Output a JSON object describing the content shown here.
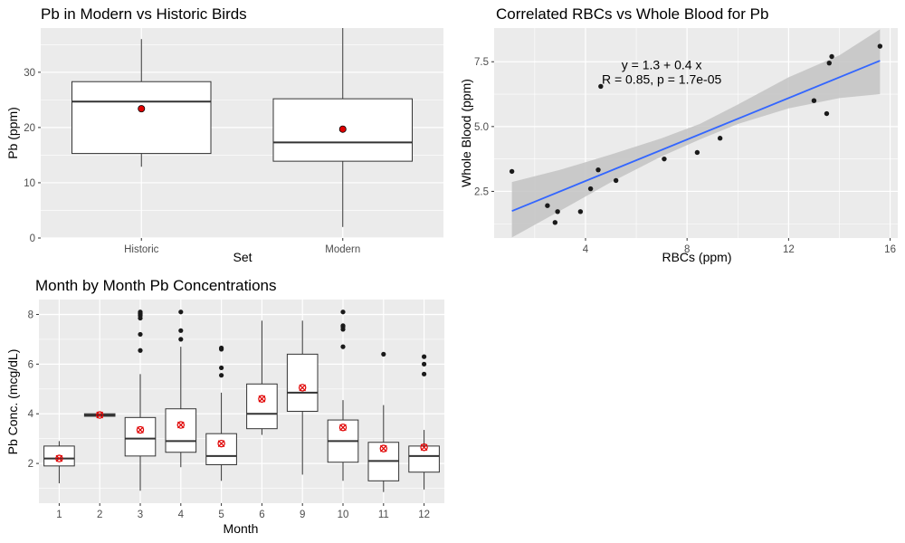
{
  "colors": {
    "panel_bg": "#ebebeb",
    "grid": "#ffffff",
    "box_fill": "#ffffff",
    "box_line": "#333333",
    "mean_point": "#e00000",
    "scatter_point": "#1a1a1a",
    "fit_line": "#3366ff",
    "ci_band": "#c3c3c3",
    "tick_text": "#4d4d4d"
  },
  "chart_data": [
    {
      "id": "historic-modern",
      "type": "box",
      "title": "Pb in Modern vs Historic Birds",
      "xlabel": "Set",
      "ylabel": "Pb (ppm)",
      "categories": [
        "Historic",
        "Modern"
      ],
      "ylim": [
        0,
        38
      ],
      "yticks": [
        0,
        10,
        20,
        30
      ],
      "grid": true,
      "boxes": [
        {
          "category": "Historic",
          "low": 12.9,
          "q1": 15.3,
          "median": 24.7,
          "q3": 28.3,
          "high": 36.0,
          "mean": 23.4,
          "outliers": []
        },
        {
          "category": "Modern",
          "low": 2.0,
          "q1": 13.9,
          "median": 17.3,
          "q3": 25.2,
          "high": 38.0,
          "mean": 19.7,
          "outliers": []
        }
      ]
    },
    {
      "id": "rbc-wholeblood",
      "type": "scatter",
      "title": "Correlated RBCs vs Whole Blood for Pb",
      "xlabel": "RBCs (ppm)",
      "ylabel": "Whole Blood (ppm)",
      "xlim": [
        0.4,
        16.3
      ],
      "ylim": [
        0.7,
        8.8
      ],
      "xticks": [
        4,
        8,
        12,
        16
      ],
      "yticks": [
        2.5,
        5.0,
        7.5
      ],
      "ytick_labels": [
        "2.5",
        "5.0",
        "7.5"
      ],
      "grid": true,
      "points": [
        [
          1.1,
          3.27
        ],
        [
          2.5,
          1.95
        ],
        [
          2.8,
          1.3
        ],
        [
          2.9,
          1.72
        ],
        [
          3.8,
          1.72
        ],
        [
          4.2,
          2.6
        ],
        [
          4.5,
          3.33
        ],
        [
          4.6,
          6.55
        ],
        [
          5.2,
          2.92
        ],
        [
          7.1,
          3.75
        ],
        [
          8.4,
          4.0
        ],
        [
          9.3,
          4.55
        ],
        [
          13.0,
          6.0
        ],
        [
          13.5,
          5.5
        ],
        [
          13.6,
          7.45
        ],
        [
          13.7,
          7.7
        ],
        [
          15.6,
          8.1
        ]
      ],
      "fit": {
        "intercept": 1.3,
        "slope": 0.4,
        "x_from": 1.1,
        "x_to": 15.6
      },
      "ci_band": [
        {
          "x": 1.1,
          "lo": 0.72,
          "hi": 2.86
        },
        {
          "x": 3.0,
          "lo": 1.75,
          "hi": 3.33
        },
        {
          "x": 5.0,
          "lo": 2.85,
          "hi": 3.92
        },
        {
          "x": 7.0,
          "lo": 3.85,
          "hi": 4.55
        },
        {
          "x": 8.5,
          "lo": 4.5,
          "hi": 5.1
        },
        {
          "x": 10.0,
          "lo": 5.1,
          "hi": 5.85
        },
        {
          "x": 12.0,
          "lo": 5.7,
          "hi": 6.9
        },
        {
          "x": 14.0,
          "lo": 6.1,
          "hi": 7.75
        },
        {
          "x": 15.6,
          "lo": 6.25,
          "hi": 8.75
        }
      ],
      "annotation": {
        "line1": "y = 1.3 + 0.4 x",
        "line2": "R = 0.85, p = 1.7e-05",
        "x": 7.0,
        "y1": 7.38,
        "y2": 6.82
      }
    },
    {
      "id": "month-by-month",
      "type": "box",
      "title": "Month by Month Pb Concentrations",
      "xlabel": "Month",
      "ylabel": "Pb Conc. (mcg/dL)",
      "categories": [
        "1",
        "2",
        "3",
        "4",
        "5",
        "6",
        "9",
        "10",
        "11",
        "12"
      ],
      "ylim": [
        0.4,
        8.6
      ],
      "yticks": [
        2,
        4,
        6,
        8
      ],
      "grid": true,
      "boxes": [
        {
          "category": "1",
          "low": 1.2,
          "q1": 1.9,
          "median": 2.2,
          "q3": 2.7,
          "high": 2.9,
          "mean": 2.2,
          "outliers": []
        },
        {
          "category": "2",
          "low": 3.9,
          "q1": 3.9,
          "median": 3.95,
          "q3": 4.0,
          "high": 4.0,
          "mean": 3.95,
          "outliers": []
        },
        {
          "category": "3",
          "low": 0.9,
          "q1": 2.3,
          "median": 3.0,
          "q3": 3.85,
          "high": 5.6,
          "mean": 3.35,
          "outliers": [
            6.55,
            7.2,
            7.85,
            7.95,
            8.0,
            8.05,
            8.1
          ]
        },
        {
          "category": "4",
          "low": 1.85,
          "q1": 2.45,
          "median": 2.9,
          "q3": 4.2,
          "high": 6.7,
          "mean": 3.55,
          "outliers": [
            7.0,
            7.35,
            8.1
          ]
        },
        {
          "category": "5",
          "low": 1.3,
          "q1": 1.95,
          "median": 2.3,
          "q3": 3.2,
          "high": 4.85,
          "mean": 2.8,
          "outliers": [
            5.55,
            5.85,
            6.6,
            6.65
          ]
        },
        {
          "category": "6",
          "low": 3.15,
          "q1": 3.4,
          "median": 4.0,
          "q3": 5.2,
          "high": 7.75,
          "mean": 4.6,
          "outliers": []
        },
        {
          "category": "9",
          "low": 1.55,
          "q1": 4.1,
          "median": 4.85,
          "q3": 6.4,
          "high": 7.75,
          "mean": 5.05,
          "outliers": []
        },
        {
          "category": "10",
          "low": 1.3,
          "q1": 2.05,
          "median": 2.9,
          "q3": 3.75,
          "high": 4.55,
          "mean": 3.45,
          "outliers": [
            6.7,
            7.4,
            7.5,
            7.55,
            8.1
          ]
        },
        {
          "category": "11",
          "low": 0.85,
          "q1": 1.3,
          "median": 2.1,
          "q3": 2.85,
          "high": 4.35,
          "mean": 2.6,
          "outliers": [
            6.4
          ]
        },
        {
          "category": "12",
          "low": 0.95,
          "q1": 1.65,
          "median": 2.3,
          "q3": 2.7,
          "high": 3.35,
          "mean": 2.65,
          "outliers": [
            5.6,
            6.0,
            6.3
          ]
        }
      ]
    }
  ]
}
